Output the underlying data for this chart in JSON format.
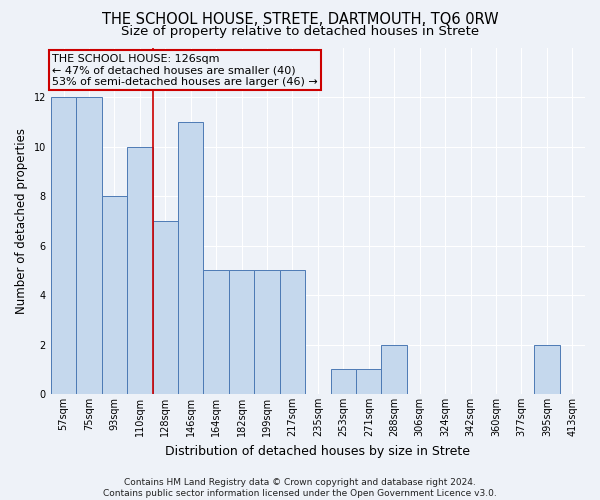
{
  "title": "THE SCHOOL HOUSE, STRETE, DARTMOUTH, TQ6 0RW",
  "subtitle": "Size of property relative to detached houses in Strete",
  "xlabel": "Distribution of detached houses by size in Strete",
  "ylabel": "Number of detached properties",
  "categories": [
    "57sqm",
    "75sqm",
    "93sqm",
    "110sqm",
    "128sqm",
    "146sqm",
    "164sqm",
    "182sqm",
    "199sqm",
    "217sqm",
    "235sqm",
    "253sqm",
    "271sqm",
    "288sqm",
    "306sqm",
    "324sqm",
    "342sqm",
    "360sqm",
    "377sqm",
    "395sqm",
    "413sqm"
  ],
  "values": [
    12,
    12,
    8,
    10,
    7,
    11,
    5,
    5,
    5,
    5,
    0,
    1,
    1,
    2,
    0,
    0,
    0,
    0,
    0,
    2,
    0
  ],
  "bar_color": "#c5d8ed",
  "bar_edge_color": "#4d7ab5",
  "highlight_index": 3,
  "highlight_line_color": "#cc0000",
  "annotation_line1": "THE SCHOOL HOUSE: 126sqm",
  "annotation_line2": "← 47% of detached houses are smaller (40)",
  "annotation_line3": "53% of semi-detached houses are larger (46) →",
  "ylim": [
    0,
    14
  ],
  "yticks": [
    0,
    2,
    4,
    6,
    8,
    10,
    12
  ],
  "footer": "Contains HM Land Registry data © Crown copyright and database right 2024.\nContains public sector information licensed under the Open Government Licence v3.0.",
  "background_color": "#eef2f8",
  "grid_color": "#ffffff",
  "title_fontsize": 10.5,
  "subtitle_fontsize": 9.5,
  "ylabel_fontsize": 8.5,
  "xlabel_fontsize": 9,
  "tick_fontsize": 7,
  "annotation_fontsize": 8,
  "footer_fontsize": 6.5
}
